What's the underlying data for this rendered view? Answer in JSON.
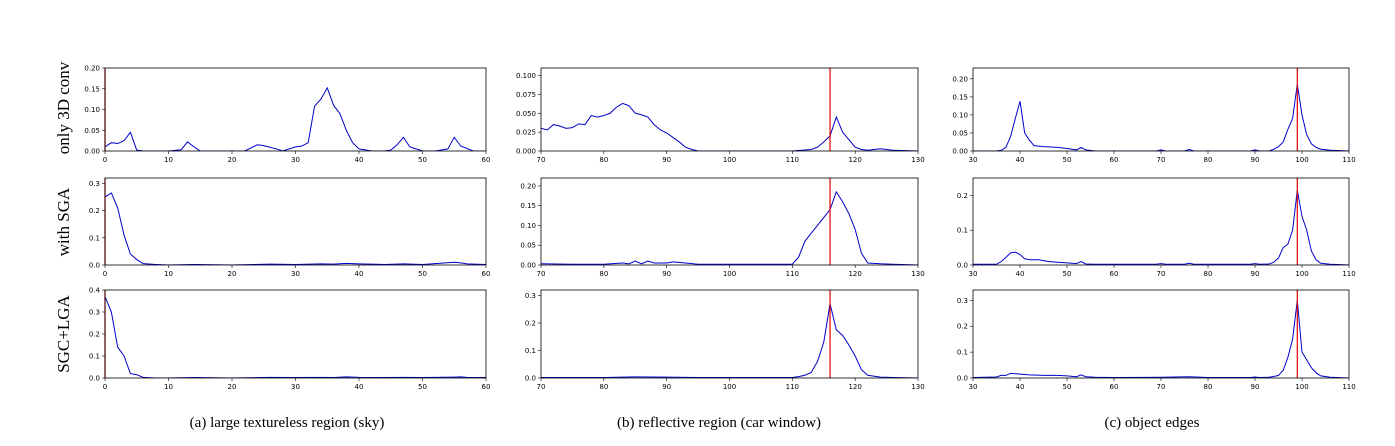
{
  "figure": {
    "row_labels": [
      "only 3D conv",
      "with SGA",
      "SGC+LGA"
    ],
    "captions": [
      "(a)  large textureless region (sky)",
      "(b)  reflective region (car window)",
      "(c)  object edges"
    ],
    "colors": {
      "curve": "#0000cc",
      "marker": "#e00000",
      "frame": "#000000"
    }
  },
  "chart_data": [
    {
      "type": "line",
      "column": "a",
      "row": "only 3D conv",
      "xlim": [
        0,
        60
      ],
      "ylim": [
        0,
        0.2
      ],
      "xticks": [
        0,
        10,
        20,
        30,
        40,
        50,
        60
      ],
      "yticks": [
        0.0,
        0.05,
        0.1,
        0.15,
        0.2
      ],
      "ytick_labels": [
        "0.00",
        "0.05",
        "0.10",
        "0.15",
        "0.20"
      ],
      "vline": 0,
      "x": [
        0,
        1,
        2,
        3,
        4,
        5,
        6,
        8,
        10,
        12,
        13,
        14,
        15,
        18,
        22,
        24,
        25,
        27,
        28,
        30,
        31,
        32,
        33,
        34,
        35,
        36,
        37,
        38,
        39,
        40,
        42,
        44,
        45,
        46,
        47,
        48,
        50,
        52,
        54,
        55,
        56,
        58,
        60
      ],
      "y": [
        0.01,
        0.02,
        0.018,
        0.025,
        0.045,
        0.002,
        0,
        0,
        0,
        0.003,
        0.022,
        0.01,
        0,
        0,
        0,
        0.015,
        0.013,
        0.005,
        0,
        0.01,
        0.012,
        0.02,
        0.108,
        0.125,
        0.152,
        0.11,
        0.09,
        0.05,
        0.02,
        0.005,
        0,
        0,
        0.002,
        0.015,
        0.033,
        0.01,
        0,
        0,
        0.005,
        0.033,
        0.012,
        0,
        0
      ]
    },
    {
      "type": "line",
      "column": "a",
      "row": "with SGA",
      "xlim": [
        0,
        60
      ],
      "ylim": [
        0,
        0.32
      ],
      "xticks": [
        0,
        10,
        20,
        30,
        40,
        50,
        60
      ],
      "yticks": [
        0.0,
        0.1,
        0.2,
        0.3
      ],
      "ytick_labels": [
        "0.0",
        "0.1",
        "0.2",
        "0.3"
      ],
      "vline": 0,
      "x": [
        0,
        1,
        2,
        3,
        4,
        5,
        6,
        8,
        10,
        14,
        20,
        26,
        30,
        34,
        36,
        38,
        40,
        44,
        47,
        50,
        55,
        56,
        57,
        60
      ],
      "y": [
        0.25,
        0.265,
        0.21,
        0.11,
        0.04,
        0.02,
        0.005,
        0.002,
        0,
        0.002,
        0,
        0.003,
        0.002,
        0.004,
        0.003,
        0.006,
        0.004,
        0.002,
        0.004,
        0.002,
        0.01,
        0.008,
        0.004,
        0.002
      ]
    },
    {
      "type": "line",
      "column": "a",
      "row": "SGC+LGA",
      "xlim": [
        0,
        60
      ],
      "ylim": [
        0,
        0.4
      ],
      "xticks": [
        0,
        10,
        20,
        30,
        40,
        50,
        60
      ],
      "yticks": [
        0.0,
        0.1,
        0.2,
        0.3,
        0.4
      ],
      "ytick_labels": [
        "0.0",
        "0.1",
        "0.2",
        "0.3",
        "0.4"
      ],
      "vline": 0,
      "x": [
        0,
        1,
        2,
        3,
        4,
        5,
        6,
        8,
        10,
        14,
        20,
        26,
        30,
        34,
        36,
        38,
        40,
        44,
        47,
        50,
        55,
        56,
        57,
        60
      ],
      "y": [
        0.37,
        0.3,
        0.14,
        0.1,
        0.02,
        0.015,
        0.003,
        0,
        0,
        0.002,
        0,
        0.003,
        0.002,
        0.003,
        0.002,
        0.005,
        0.003,
        0.002,
        0.003,
        0.002,
        0.004,
        0.005,
        0.003,
        0.002
      ]
    },
    {
      "type": "line",
      "column": "b",
      "row": "only 3D conv",
      "xlim": [
        70,
        130
      ],
      "ylim": [
        0,
        0.11
      ],
      "xticks": [
        70,
        80,
        90,
        100,
        110,
        120,
        130
      ],
      "yticks": [
        0.0,
        0.025,
        0.05,
        0.075,
        0.1
      ],
      "ytick_labels": [
        "0.000",
        "0.025",
        "0.050",
        "0.075",
        "0.100"
      ],
      "vline": 116,
      "x": [
        70,
        71,
        72,
        73,
        74,
        75,
        76,
        77,
        78,
        79,
        80,
        81,
        82,
        83,
        84,
        85,
        86,
        87,
        88,
        89,
        90,
        91,
        92,
        93,
        94,
        95,
        97,
        100,
        105,
        110,
        113,
        114,
        115,
        116,
        117,
        118,
        119,
        120,
        121,
        122,
        124,
        126,
        130
      ],
      "y": [
        0.03,
        0.028,
        0.035,
        0.033,
        0.03,
        0.031,
        0.036,
        0.035,
        0.047,
        0.045,
        0.047,
        0.05,
        0.058,
        0.063,
        0.06,
        0.05,
        0.048,
        0.045,
        0.035,
        0.028,
        0.024,
        0.018,
        0.012,
        0.005,
        0.002,
        0,
        0,
        0,
        0,
        0,
        0.002,
        0.005,
        0.012,
        0.02,
        0.045,
        0.025,
        0.015,
        0.005,
        0.002,
        0.001,
        0.003,
        0.001,
        0
      ]
    },
    {
      "type": "line",
      "column": "b",
      "row": "with SGA",
      "xlim": [
        70,
        130
      ],
      "ylim": [
        0,
        0.22
      ],
      "xticks": [
        70,
        80,
        90,
        100,
        110,
        120,
        130
      ],
      "yticks": [
        0.0,
        0.05,
        0.1,
        0.15,
        0.2
      ],
      "ytick_labels": [
        "0.00",
        "0.05",
        "0.10",
        "0.15",
        "0.20"
      ],
      "vline": 116,
      "x": [
        70,
        75,
        80,
        83,
        84,
        85,
        86,
        87,
        88,
        90,
        91,
        93,
        95,
        100,
        105,
        110,
        111,
        112,
        113,
        114,
        115,
        116,
        117,
        118,
        119,
        120,
        121,
        122,
        124,
        126,
        130
      ],
      "y": [
        0.003,
        0.002,
        0.002,
        0.005,
        0.003,
        0.01,
        0.003,
        0.01,
        0.005,
        0.005,
        0.008,
        0.005,
        0.002,
        0.002,
        0.002,
        0.002,
        0.02,
        0.06,
        0.08,
        0.1,
        0.12,
        0.14,
        0.185,
        0.16,
        0.13,
        0.09,
        0.03,
        0.005,
        0.003,
        0.002,
        0
      ]
    },
    {
      "type": "line",
      "column": "b",
      "row": "SGC+LGA",
      "xlim": [
        70,
        130
      ],
      "ylim": [
        0,
        0.32
      ],
      "xticks": [
        70,
        80,
        90,
        100,
        110,
        120,
        130
      ],
      "yticks": [
        0.0,
        0.1,
        0.2,
        0.3
      ],
      "ytick_labels": [
        "0.0",
        "0.1",
        "0.2",
        "0.3"
      ],
      "vline": 116,
      "x": [
        70,
        80,
        85,
        90,
        95,
        100,
        105,
        110,
        111,
        112,
        113,
        114,
        115,
        116,
        117,
        118,
        119,
        120,
        121,
        122,
        124,
        126,
        130
      ],
      "y": [
        0.002,
        0.002,
        0.004,
        0.003,
        0.002,
        0.002,
        0.002,
        0.002,
        0.005,
        0.01,
        0.02,
        0.06,
        0.13,
        0.27,
        0.175,
        0.155,
        0.12,
        0.08,
        0.03,
        0.01,
        0.003,
        0.002,
        0
      ]
    },
    {
      "type": "line",
      "column": "c",
      "row": "only 3D conv",
      "xlim": [
        30,
        110
      ],
      "ylim": [
        0,
        0.23
      ],
      "xticks": [
        30,
        40,
        50,
        60,
        70,
        80,
        90,
        100,
        110
      ],
      "yticks": [
        0.0,
        0.05,
        0.1,
        0.15,
        0.2
      ],
      "ytick_labels": [
        "0.00",
        "0.05",
        "0.10",
        "0.15",
        "0.20"
      ],
      "vline": 99,
      "x": [
        30,
        35,
        36,
        37,
        38,
        39,
        40,
        41,
        42,
        43,
        45,
        48,
        50,
        52,
        53,
        54,
        56,
        60,
        69,
        70,
        71,
        75,
        76,
        77,
        80,
        85,
        89,
        90,
        91,
        93,
        94,
        95,
        96,
        97,
        98,
        99,
        100,
        101,
        102,
        103,
        104,
        106,
        110
      ],
      "y": [
        0,
        0,
        0.002,
        0.01,
        0.04,
        0.09,
        0.138,
        0.05,
        0.03,
        0.015,
        0.012,
        0.01,
        0.007,
        0.003,
        0.01,
        0.003,
        0,
        0,
        0,
        0.003,
        0,
        0,
        0.004,
        0,
        0,
        0,
        0,
        0.003,
        0,
        0,
        0.005,
        0.012,
        0.025,
        0.06,
        0.09,
        0.185,
        0.1,
        0.045,
        0.02,
        0.01,
        0.005,
        0.002,
        0
      ]
    },
    {
      "type": "line",
      "column": "c",
      "row": "with SGA",
      "xlim": [
        30,
        110
      ],
      "ylim": [
        0,
        0.25
      ],
      "xticks": [
        30,
        40,
        50,
        60,
        70,
        80,
        90,
        100,
        110
      ],
      "yticks": [
        0.0,
        0.1,
        0.2
      ],
      "ytick_labels": [
        "0.0",
        "0.1",
        "0.2"
      ],
      "vline": 99,
      "x": [
        30,
        35,
        36,
        37,
        38,
        39,
        40,
        41,
        42,
        44,
        46,
        48,
        50,
        52,
        53,
        54,
        56,
        60,
        69,
        70,
        71,
        75,
        76,
        77,
        80,
        85,
        89,
        90,
        91,
        93,
        94,
        95,
        96,
        97,
        98,
        99,
        100,
        101,
        102,
        103,
        104,
        106,
        110
      ],
      "y": [
        0.002,
        0.002,
        0.01,
        0.022,
        0.035,
        0.037,
        0.03,
        0.018,
        0.015,
        0.015,
        0.01,
        0.008,
        0.006,
        0.004,
        0.01,
        0.003,
        0.002,
        0.002,
        0.002,
        0.004,
        0.002,
        0.002,
        0.005,
        0.002,
        0.002,
        0.002,
        0.002,
        0.004,
        0.002,
        0.003,
        0.008,
        0.02,
        0.05,
        0.06,
        0.1,
        0.215,
        0.14,
        0.1,
        0.04,
        0.015,
        0.005,
        0.002,
        0
      ]
    },
    {
      "type": "line",
      "column": "c",
      "row": "SGC+LGA",
      "xlim": [
        30,
        110
      ],
      "ylim": [
        0,
        0.34
      ],
      "xticks": [
        30,
        40,
        50,
        60,
        70,
        80,
        90,
        100,
        110
      ],
      "yticks": [
        0.0,
        0.1,
        0.2,
        0.3
      ],
      "ytick_labels": [
        "0.0",
        "0.1",
        "0.2",
        "0.3"
      ],
      "vline": 99,
      "x": [
        30,
        35,
        36,
        37,
        38,
        40,
        42,
        45,
        48,
        50,
        52,
        53,
        54,
        56,
        60,
        70,
        76,
        80,
        85,
        89,
        90,
        91,
        93,
        94,
        95,
        96,
        97,
        98,
        99,
        100,
        101,
        102,
        103,
        104,
        106,
        110
      ],
      "y": [
        0.002,
        0.004,
        0.01,
        0.01,
        0.018,
        0.015,
        0.012,
        0.01,
        0.01,
        0.008,
        0.005,
        0.012,
        0.005,
        0.003,
        0.002,
        0.003,
        0.005,
        0.002,
        0.002,
        0.002,
        0.004,
        0.002,
        0.003,
        0.006,
        0.01,
        0.03,
        0.08,
        0.15,
        0.3,
        0.1,
        0.07,
        0.04,
        0.02,
        0.008,
        0.003,
        0
      ]
    }
  ]
}
